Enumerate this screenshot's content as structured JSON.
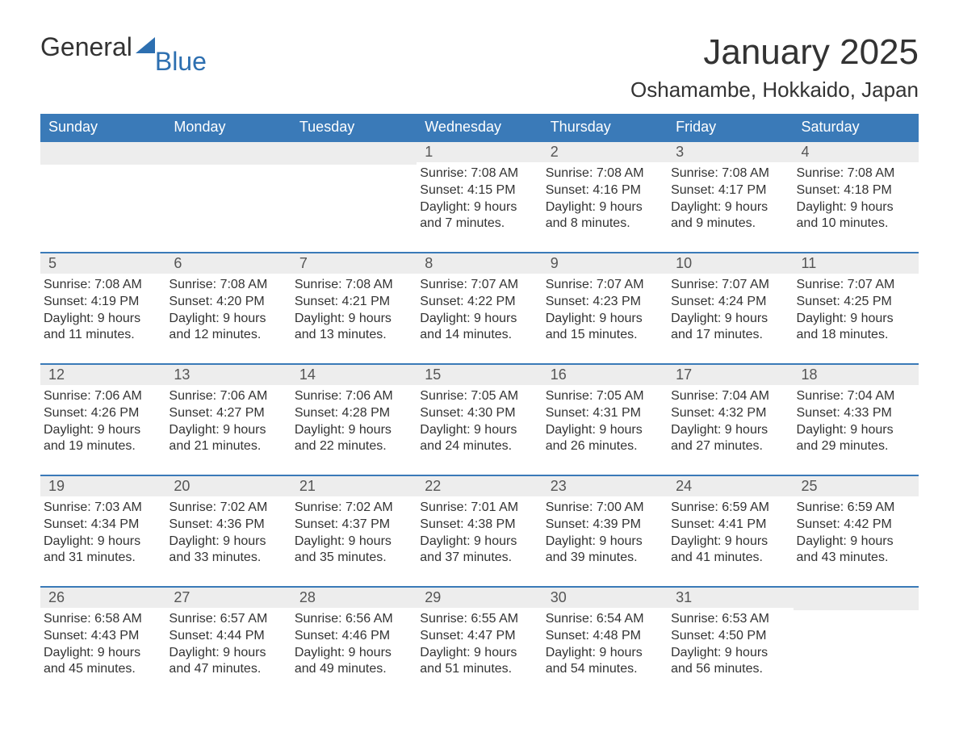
{
  "logo": {
    "word1": "General",
    "word2": "Blue",
    "accent_color": "#2d6fb0"
  },
  "title": "January 2025",
  "location": "Oshamambe, Hokkaido, Japan",
  "colors": {
    "header_bg": "#3a7ab8",
    "header_text": "#ffffff",
    "daynum_bg": "#ededed",
    "daynum_text": "#555555",
    "body_text": "#333333",
    "week_border": "#3a7ab8",
    "page_bg": "#ffffff"
  },
  "day_labels": [
    "Sunday",
    "Monday",
    "Tuesday",
    "Wednesday",
    "Thursday",
    "Friday",
    "Saturday"
  ],
  "weeks": [
    [
      {
        "blank": true
      },
      {
        "blank": true
      },
      {
        "blank": true
      },
      {
        "n": "1",
        "sr": "Sunrise: 7:08 AM",
        "ss": "Sunset: 4:15 PM",
        "d1": "Daylight: 9 hours",
        "d2": "and 7 minutes."
      },
      {
        "n": "2",
        "sr": "Sunrise: 7:08 AM",
        "ss": "Sunset: 4:16 PM",
        "d1": "Daylight: 9 hours",
        "d2": "and 8 minutes."
      },
      {
        "n": "3",
        "sr": "Sunrise: 7:08 AM",
        "ss": "Sunset: 4:17 PM",
        "d1": "Daylight: 9 hours",
        "d2": "and 9 minutes."
      },
      {
        "n": "4",
        "sr": "Sunrise: 7:08 AM",
        "ss": "Sunset: 4:18 PM",
        "d1": "Daylight: 9 hours",
        "d2": "and 10 minutes."
      }
    ],
    [
      {
        "n": "5",
        "sr": "Sunrise: 7:08 AM",
        "ss": "Sunset: 4:19 PM",
        "d1": "Daylight: 9 hours",
        "d2": "and 11 minutes."
      },
      {
        "n": "6",
        "sr": "Sunrise: 7:08 AM",
        "ss": "Sunset: 4:20 PM",
        "d1": "Daylight: 9 hours",
        "d2": "and 12 minutes."
      },
      {
        "n": "7",
        "sr": "Sunrise: 7:08 AM",
        "ss": "Sunset: 4:21 PM",
        "d1": "Daylight: 9 hours",
        "d2": "and 13 minutes."
      },
      {
        "n": "8",
        "sr": "Sunrise: 7:07 AM",
        "ss": "Sunset: 4:22 PM",
        "d1": "Daylight: 9 hours",
        "d2": "and 14 minutes."
      },
      {
        "n": "9",
        "sr": "Sunrise: 7:07 AM",
        "ss": "Sunset: 4:23 PM",
        "d1": "Daylight: 9 hours",
        "d2": "and 15 minutes."
      },
      {
        "n": "10",
        "sr": "Sunrise: 7:07 AM",
        "ss": "Sunset: 4:24 PM",
        "d1": "Daylight: 9 hours",
        "d2": "and 17 minutes."
      },
      {
        "n": "11",
        "sr": "Sunrise: 7:07 AM",
        "ss": "Sunset: 4:25 PM",
        "d1": "Daylight: 9 hours",
        "d2": "and 18 minutes."
      }
    ],
    [
      {
        "n": "12",
        "sr": "Sunrise: 7:06 AM",
        "ss": "Sunset: 4:26 PM",
        "d1": "Daylight: 9 hours",
        "d2": "and 19 minutes."
      },
      {
        "n": "13",
        "sr": "Sunrise: 7:06 AM",
        "ss": "Sunset: 4:27 PM",
        "d1": "Daylight: 9 hours",
        "d2": "and 21 minutes."
      },
      {
        "n": "14",
        "sr": "Sunrise: 7:06 AM",
        "ss": "Sunset: 4:28 PM",
        "d1": "Daylight: 9 hours",
        "d2": "and 22 minutes."
      },
      {
        "n": "15",
        "sr": "Sunrise: 7:05 AM",
        "ss": "Sunset: 4:30 PM",
        "d1": "Daylight: 9 hours",
        "d2": "and 24 minutes."
      },
      {
        "n": "16",
        "sr": "Sunrise: 7:05 AM",
        "ss": "Sunset: 4:31 PM",
        "d1": "Daylight: 9 hours",
        "d2": "and 26 minutes."
      },
      {
        "n": "17",
        "sr": "Sunrise: 7:04 AM",
        "ss": "Sunset: 4:32 PM",
        "d1": "Daylight: 9 hours",
        "d2": "and 27 minutes."
      },
      {
        "n": "18",
        "sr": "Sunrise: 7:04 AM",
        "ss": "Sunset: 4:33 PM",
        "d1": "Daylight: 9 hours",
        "d2": "and 29 minutes."
      }
    ],
    [
      {
        "n": "19",
        "sr": "Sunrise: 7:03 AM",
        "ss": "Sunset: 4:34 PM",
        "d1": "Daylight: 9 hours",
        "d2": "and 31 minutes."
      },
      {
        "n": "20",
        "sr": "Sunrise: 7:02 AM",
        "ss": "Sunset: 4:36 PM",
        "d1": "Daylight: 9 hours",
        "d2": "and 33 minutes."
      },
      {
        "n": "21",
        "sr": "Sunrise: 7:02 AM",
        "ss": "Sunset: 4:37 PM",
        "d1": "Daylight: 9 hours",
        "d2": "and 35 minutes."
      },
      {
        "n": "22",
        "sr": "Sunrise: 7:01 AM",
        "ss": "Sunset: 4:38 PM",
        "d1": "Daylight: 9 hours",
        "d2": "and 37 minutes."
      },
      {
        "n": "23",
        "sr": "Sunrise: 7:00 AM",
        "ss": "Sunset: 4:39 PM",
        "d1": "Daylight: 9 hours",
        "d2": "and 39 minutes."
      },
      {
        "n": "24",
        "sr": "Sunrise: 6:59 AM",
        "ss": "Sunset: 4:41 PM",
        "d1": "Daylight: 9 hours",
        "d2": "and 41 minutes."
      },
      {
        "n": "25",
        "sr": "Sunrise: 6:59 AM",
        "ss": "Sunset: 4:42 PM",
        "d1": "Daylight: 9 hours",
        "d2": "and 43 minutes."
      }
    ],
    [
      {
        "n": "26",
        "sr": "Sunrise: 6:58 AM",
        "ss": "Sunset: 4:43 PM",
        "d1": "Daylight: 9 hours",
        "d2": "and 45 minutes."
      },
      {
        "n": "27",
        "sr": "Sunrise: 6:57 AM",
        "ss": "Sunset: 4:44 PM",
        "d1": "Daylight: 9 hours",
        "d2": "and 47 minutes."
      },
      {
        "n": "28",
        "sr": "Sunrise: 6:56 AM",
        "ss": "Sunset: 4:46 PM",
        "d1": "Daylight: 9 hours",
        "d2": "and 49 minutes."
      },
      {
        "n": "29",
        "sr": "Sunrise: 6:55 AM",
        "ss": "Sunset: 4:47 PM",
        "d1": "Daylight: 9 hours",
        "d2": "and 51 minutes."
      },
      {
        "n": "30",
        "sr": "Sunrise: 6:54 AM",
        "ss": "Sunset: 4:48 PM",
        "d1": "Daylight: 9 hours",
        "d2": "and 54 minutes."
      },
      {
        "n": "31",
        "sr": "Sunrise: 6:53 AM",
        "ss": "Sunset: 4:50 PM",
        "d1": "Daylight: 9 hours",
        "d2": "and 56 minutes."
      },
      {
        "blank": true
      }
    ]
  ]
}
